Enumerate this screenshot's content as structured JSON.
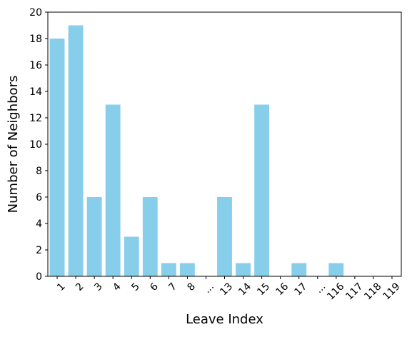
{
  "chart_data": {
    "type": "bar",
    "categories": [
      "1",
      "2",
      "3",
      "4",
      "5",
      "6",
      "7",
      "8",
      "...",
      "13",
      "14",
      "15",
      "16",
      "17",
      "...",
      "116",
      "117",
      "118",
      "119"
    ],
    "values": [
      18,
      19,
      6,
      13,
      3,
      6,
      1,
      1,
      0,
      6,
      1,
      13,
      0,
      1,
      0,
      1,
      0,
      0,
      0
    ],
    "title": "",
    "xlabel": "Leave Index",
    "ylabel": "Number of Neighbors",
    "ylim": [
      0,
      20
    ],
    "yticks": [
      0,
      2,
      4,
      6,
      8,
      10,
      12,
      14,
      16,
      18,
      20
    ],
    "x_tick_rotation_deg": 45,
    "grid": false,
    "legend": "none",
    "bar_color": "#87CEEB"
  }
}
